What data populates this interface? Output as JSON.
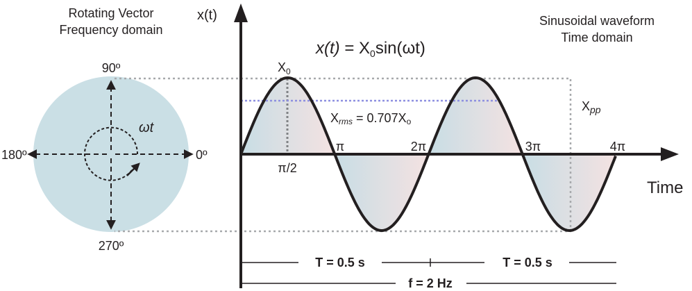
{
  "left_panel": {
    "title": [
      "Rotating Vector",
      "Frequency domain"
    ],
    "angles": {
      "top": "90º",
      "left": "180º",
      "right": "0º",
      "bottom": "270º"
    },
    "rotation_label": "ωt"
  },
  "right_panel": {
    "title": [
      "Sinusoidal waveform",
      "Time domain"
    ]
  },
  "axes": {
    "y_label": "x(t)",
    "x_label": "Time"
  },
  "equation": {
    "lhs": "x(t)",
    "rhs_prefix": " = X",
    "rhs_sub": "0",
    "rhs_suffix": "sin(ωt)"
  },
  "peak_label": {
    "text": "X",
    "sub": "0"
  },
  "rms_label": {
    "text": "X",
    "sub": "rms",
    "suffix": " = 0.707X",
    "suffix_sub": "o"
  },
  "pp_label": {
    "text": "X",
    "sub": "pp"
  },
  "phase_ticks": [
    "π",
    "2π",
    "3π",
    "4π",
    "π/2"
  ],
  "period_labels": [
    "T = 0.5 s",
    "T = 0.5 s"
  ],
  "frequency_label": "f = 2 Hz"
}
